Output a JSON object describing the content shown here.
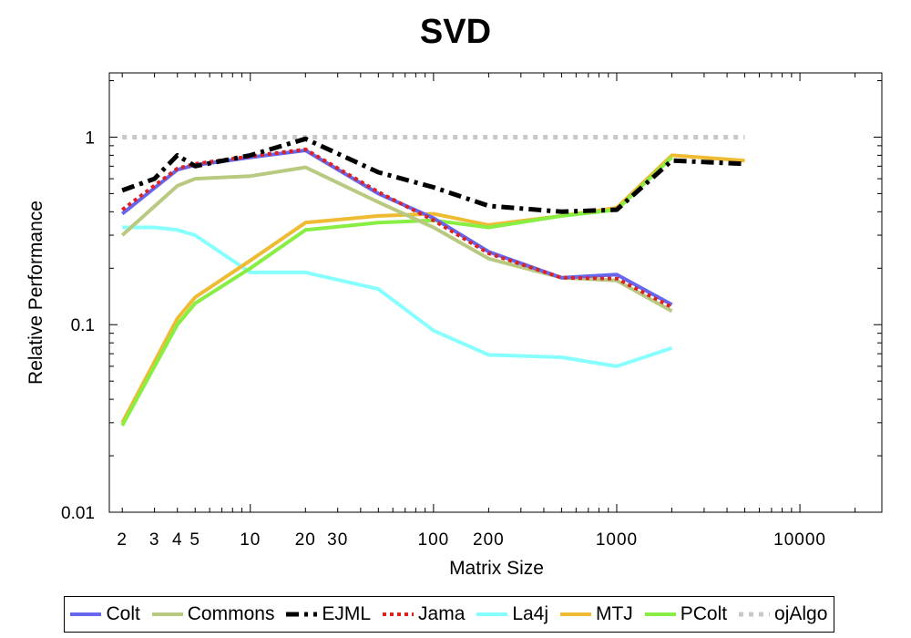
{
  "chart_data": {
    "type": "line",
    "title": "SVD",
    "xlabel": "Matrix Size",
    "ylabel": "Relative Performance",
    "xscale": "log",
    "yscale": "log",
    "xlim": [
      1.7,
      28000
    ],
    "ylim": [
      0.01,
      2.2
    ],
    "x_ticks": [
      {
        "value": 2,
        "label": "2"
      },
      {
        "value": 3,
        "label": "3"
      },
      {
        "value": 4,
        "label": "4"
      },
      {
        "value": 5,
        "label": "5"
      },
      {
        "value": 10,
        "label": "10"
      },
      {
        "value": 20,
        "label": "20"
      },
      {
        "value": 30,
        "label": "30"
      },
      {
        "value": 100,
        "label": "100"
      },
      {
        "value": 200,
        "label": "200"
      },
      {
        "value": 1000,
        "label": "1000"
      },
      {
        "value": 10000,
        "label": "10000"
      }
    ],
    "y_ticks": [
      {
        "value": 0.01,
        "label": "0.01"
      },
      {
        "value": 0.1,
        "label": "0.1"
      },
      {
        "value": 1,
        "label": "1"
      }
    ],
    "grid": false,
    "legend_position": "bottom",
    "series": [
      {
        "name": "Colt",
        "color": "#6666ee",
        "dash": "solid",
        "x": [
          2,
          4,
          5,
          10,
          20,
          50,
          100,
          200,
          500,
          1000,
          2000
        ],
        "y": [
          0.39,
          0.67,
          0.71,
          0.78,
          0.85,
          0.5,
          0.37,
          0.245,
          0.178,
          0.185,
          0.128
        ]
      },
      {
        "name": "Commons",
        "color": "#b8c980",
        "dash": "solid",
        "x": [
          2,
          4,
          5,
          10,
          20,
          50,
          100,
          200,
          500,
          1000,
          2000
        ],
        "y": [
          0.3,
          0.55,
          0.6,
          0.62,
          0.69,
          0.45,
          0.33,
          0.225,
          0.178,
          0.172,
          0.118
        ]
      },
      {
        "name": "EJML",
        "color": "#000000",
        "dash": "dashdot",
        "x": [
          2,
          3,
          4,
          5,
          10,
          20,
          50,
          100,
          200,
          500,
          1000,
          2000,
          5000
        ],
        "y": [
          0.52,
          0.6,
          0.8,
          0.7,
          0.8,
          0.98,
          0.65,
          0.54,
          0.43,
          0.4,
          0.41,
          0.75,
          0.72
        ]
      },
      {
        "name": "Jama",
        "color": "#dd2222",
        "dash": "dotted",
        "x": [
          2,
          4,
          5,
          10,
          20,
          50,
          100,
          200,
          500,
          1000,
          2000
        ],
        "y": [
          0.41,
          0.68,
          0.72,
          0.79,
          0.86,
          0.51,
          0.36,
          0.24,
          0.178,
          0.176,
          0.124
        ]
      },
      {
        "name": "La4j",
        "color": "#88ffff",
        "dash": "solid",
        "x": [
          2,
          3,
          4,
          5,
          10,
          20,
          50,
          100,
          200,
          500,
          1000,
          2000
        ],
        "y": [
          0.33,
          0.33,
          0.32,
          0.3,
          0.19,
          0.19,
          0.155,
          0.093,
          0.069,
          0.067,
          0.06,
          0.075
        ]
      },
      {
        "name": "MTJ",
        "color": "#eebb33",
        "dash": "solid",
        "x": [
          2,
          4,
          5,
          10,
          20,
          50,
          100,
          200,
          500,
          1000,
          2000,
          5000
        ],
        "y": [
          0.03,
          0.108,
          0.14,
          0.22,
          0.35,
          0.38,
          0.39,
          0.34,
          0.38,
          0.42,
          0.8,
          0.75
        ]
      },
      {
        "name": "PColt",
        "color": "#88ee44",
        "dash": "solid",
        "x": [
          2,
          4,
          5,
          10,
          20,
          50,
          100,
          200,
          500,
          1000,
          2000
        ],
        "y": [
          0.029,
          0.1,
          0.13,
          0.2,
          0.32,
          0.35,
          0.36,
          0.33,
          0.38,
          0.41,
          0.78
        ]
      },
      {
        "name": "ojAlgo",
        "color": "#c8c8c8",
        "dash": "dotted-thick",
        "x": [
          2,
          5000
        ],
        "y": [
          1,
          1
        ]
      }
    ]
  }
}
